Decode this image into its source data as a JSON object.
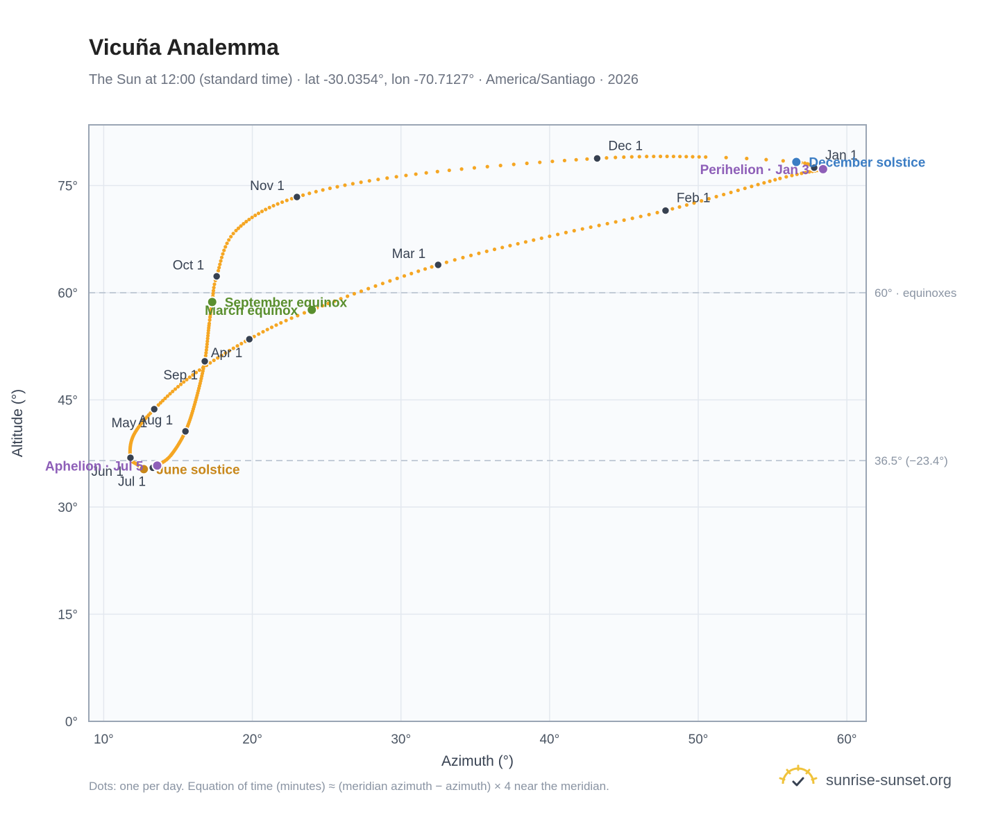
{
  "header": {
    "title": "Vicuña Analemma",
    "subtitle": "The Sun at 12:00 (standard time) · lat -30.0354°, lon -70.7127° · America/Santiago · 2026"
  },
  "footer": {
    "note": "Dots: one per day. Equation of time (minutes) ≈ (meridian azimuth − azimuth) × 4 near the meridian.",
    "brand": "sunrise-sunset.org"
  },
  "chart_data": {
    "type": "scatter",
    "xlabel": "Azimuth (°)",
    "ylabel": "Altitude (°)",
    "xlim": [
      9,
      61.3
    ],
    "ylim": [
      0,
      83.5
    ],
    "xticks": [
      10,
      20,
      30,
      40,
      50,
      60
    ],
    "yticks": [
      0,
      15,
      30,
      45,
      60,
      75
    ],
    "xtick_labels": [
      "10°",
      "20°",
      "30°",
      "40°",
      "50°",
      "60°"
    ],
    "ytick_labels": [
      "0°",
      "15°",
      "30°",
      "45°",
      "60°",
      "75°"
    ],
    "grid": true,
    "reference_lines": [
      {
        "y": 60,
        "label": "60° · equinoxes"
      },
      {
        "y": 36.5,
        "label": "36.5° (−23.4°)"
      }
    ],
    "colors": {
      "path": "#f5a623",
      "month_marker": "#374151",
      "equinox": "#5a8f2e",
      "june_solstice": "#c8871a",
      "december_solstice": "#3b7dc4",
      "apsis": "#8e5fb8",
      "reference_line": "#b8c2cf",
      "plot_bg": "#f9fbfd"
    },
    "path_knots": [
      {
        "day": 1,
        "x": 57.8,
        "y": 77.5
      },
      {
        "day": 3,
        "x": 58.4,
        "y": 77.3
      },
      {
        "day": 15,
        "x": 55.5,
        "y": 76.0
      },
      {
        "day": 32,
        "x": 47.8,
        "y": 71.5
      },
      {
        "day": 46,
        "x": 40.0,
        "y": 67.9
      },
      {
        "day": 60,
        "x": 32.5,
        "y": 63.9
      },
      {
        "day": 79,
        "x": 24.0,
        "y": 57.6
      },
      {
        "day": 91,
        "x": 19.8,
        "y": 53.5
      },
      {
        "day": 106,
        "x": 16.0,
        "y": 48.5
      },
      {
        "day": 121,
        "x": 13.4,
        "y": 43.7
      },
      {
        "day": 136,
        "x": 12.0,
        "y": 40.0
      },
      {
        "day": 152,
        "x": 11.8,
        "y": 36.9
      },
      {
        "day": 162,
        "x": 12.3,
        "y": 35.9
      },
      {
        "day": 172,
        "x": 12.7,
        "y": 35.3
      },
      {
        "day": 182,
        "x": 13.3,
        "y": 35.5
      },
      {
        "day": 186,
        "x": 13.6,
        "y": 35.8
      },
      {
        "day": 196,
        "x": 14.5,
        "y": 37.2
      },
      {
        "day": 213,
        "x": 15.5,
        "y": 40.6
      },
      {
        "day": 228,
        "x": 16.2,
        "y": 45.0
      },
      {
        "day": 244,
        "x": 16.8,
        "y": 50.4
      },
      {
        "day": 258,
        "x": 17.1,
        "y": 55.7
      },
      {
        "day": 266,
        "x": 17.3,
        "y": 58.7
      },
      {
        "day": 274,
        "x": 17.6,
        "y": 62.3
      },
      {
        "day": 288,
        "x": 18.9,
        "y": 68.7
      },
      {
        "day": 305,
        "x": 23.0,
        "y": 73.4
      },
      {
        "day": 320,
        "x": 31.0,
        "y": 76.6
      },
      {
        "day": 335,
        "x": 43.2,
        "y": 78.8
      },
      {
        "day": 350,
        "x": 50.5,
        "y": 79.0
      },
      {
        "day": 355,
        "x": 56.6,
        "y": 78.3
      },
      {
        "day": 365,
        "x": 57.8,
        "y": 77.5
      }
    ],
    "month_markers": [
      {
        "label": "Jan 1",
        "x": 57.8,
        "y": 77.5,
        "label_pos": "above-right"
      },
      {
        "label": "Feb 1",
        "x": 47.8,
        "y": 71.5,
        "label_pos": "above-right"
      },
      {
        "label": "Mar 1",
        "x": 32.5,
        "y": 63.9,
        "label_pos": "above-left"
      },
      {
        "label": "Apr 1",
        "x": 19.8,
        "y": 53.5,
        "label_pos": "below-left"
      },
      {
        "label": "May 1",
        "x": 13.4,
        "y": 43.7,
        "label_pos": "below-left"
      },
      {
        "label": "Jun 1",
        "x": 11.8,
        "y": 36.9,
        "label_pos": "below-left"
      },
      {
        "label": "Jul 1",
        "x": 13.3,
        "y": 35.5,
        "label_pos": "below-left"
      },
      {
        "label": "Aug 1",
        "x": 15.5,
        "y": 40.6,
        "label_pos": "above-left"
      },
      {
        "label": "Sep 1",
        "x": 16.8,
        "y": 50.4,
        "label_pos": "below-left"
      },
      {
        "label": "Oct 1",
        "x": 17.6,
        "y": 62.3,
        "label_pos": "above-left"
      },
      {
        "label": "Nov 1",
        "x": 23.0,
        "y": 73.4,
        "label_pos": "above-left"
      },
      {
        "label": "Dec 1",
        "x": 43.2,
        "y": 78.8,
        "label_pos": "above-right"
      }
    ],
    "events": [
      {
        "label": "March equinox",
        "x": 24.0,
        "y": 57.6,
        "kind": "equinox",
        "label_pos": "left"
      },
      {
        "label": "September equinox",
        "x": 17.3,
        "y": 58.7,
        "kind": "equinox",
        "label_pos": "right"
      },
      {
        "label": "June solstice",
        "x": 12.7,
        "y": 35.3,
        "kind": "june_solstice",
        "label_pos": "right"
      },
      {
        "label": "December solstice",
        "x": 56.6,
        "y": 78.3,
        "kind": "december_solstice",
        "label_pos": "right"
      },
      {
        "label": "Aphelion · Jul 5",
        "x": 13.6,
        "y": 35.8,
        "kind": "apsis",
        "label_pos": "left"
      },
      {
        "label": "Perihelion · Jan 3",
        "x": 58.4,
        "y": 77.3,
        "kind": "apsis",
        "label_pos": "left"
      }
    ]
  }
}
